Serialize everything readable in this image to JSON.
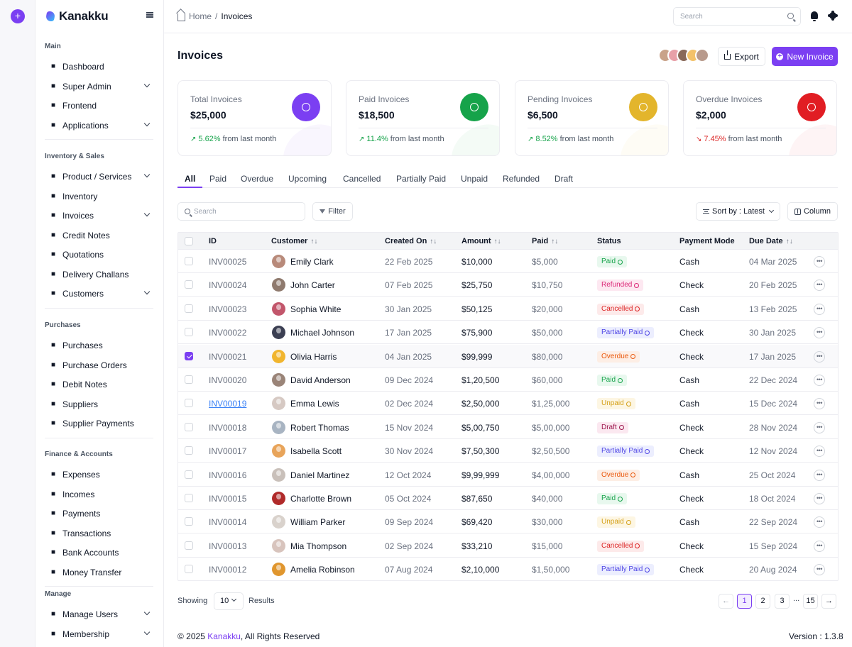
{
  "app": {
    "name": "Kanakku"
  },
  "sidebar": {
    "sections": [
      {
        "title": "Main",
        "items": [
          {
            "label": "Dashboard",
            "icon": "dashboard-icon",
            "expandable": false
          },
          {
            "label": "Super Admin",
            "icon": "super-admin-icon",
            "expandable": true
          },
          {
            "label": "Frontend",
            "icon": "frontend-icon",
            "expandable": false
          },
          {
            "label": "Applications",
            "icon": "applications-icon",
            "expandable": true
          }
        ]
      },
      {
        "title": "Inventory & Sales",
        "items": [
          {
            "label": "Product / Services",
            "icon": "box-icon",
            "expandable": true
          },
          {
            "label": "Inventory",
            "icon": "inventory-icon",
            "expandable": false
          },
          {
            "label": "Invoices",
            "icon": "invoice-icon",
            "expandable": true
          },
          {
            "label": "Credit Notes",
            "icon": "credit-note-icon",
            "expandable": false
          },
          {
            "label": "Quotations",
            "icon": "quotation-icon",
            "expandable": false
          },
          {
            "label": "Delivery Challans",
            "icon": "delivery-icon",
            "expandable": false
          },
          {
            "label": "Customers",
            "icon": "customers-icon",
            "expandable": true
          }
        ]
      },
      {
        "title": "Purchases",
        "items": [
          {
            "label": "Purchases",
            "icon": "purchases-icon",
            "expandable": false
          },
          {
            "label": "Purchase Orders",
            "icon": "purchase-order-icon",
            "expandable": false
          },
          {
            "label": "Debit Notes",
            "icon": "debit-note-icon",
            "expandable": false
          },
          {
            "label": "Suppliers",
            "icon": "supplier-icon",
            "expandable": false
          },
          {
            "label": "Supplier Payments",
            "icon": "supplier-payment-icon",
            "expandable": false
          }
        ]
      },
      {
        "title": "Finance & Accounts",
        "items": [
          {
            "label": "Expenses",
            "icon": "expenses-icon",
            "expandable": false
          },
          {
            "label": "Incomes",
            "icon": "incomes-icon",
            "expandable": false
          },
          {
            "label": "Payments",
            "icon": "payments-icon",
            "expandable": false
          },
          {
            "label": "Transactions",
            "icon": "transactions-icon",
            "expandable": false
          },
          {
            "label": "Bank Accounts",
            "icon": "bank-icon",
            "expandable": false
          },
          {
            "label": "Money Transfer",
            "icon": "transfer-icon",
            "expandable": false
          }
        ]
      },
      {
        "title": "Manage",
        "items": [
          {
            "label": "Manage Users",
            "icon": "users-icon",
            "expandable": true
          },
          {
            "label": "Membership",
            "icon": "membership-icon",
            "expandable": true
          }
        ]
      }
    ]
  },
  "topbar": {
    "breadcrumb_home": "Home",
    "breadcrumb_sep": "/",
    "breadcrumb_current": "Invoices",
    "search_placeholder": "Search"
  },
  "page": {
    "title": "Invoices",
    "export_label": "Export",
    "new_label": "New Invoice",
    "avatar_colors": [
      "#c9a38a",
      "#e8a0a8",
      "#8a6a5a",
      "#f3c26b",
      "#b89a8c"
    ]
  },
  "stats": [
    {
      "label": "Total Invoices",
      "value": "$25,000",
      "change": "5.62%",
      "suffix": "from last month",
      "direction": "up",
      "color": "#7b3ff2"
    },
    {
      "label": "Paid Invoices",
      "value": "$18,500",
      "change": "11.4%",
      "suffix": "from last month",
      "direction": "up",
      "color": "#16a34a"
    },
    {
      "label": "Pending Invoices",
      "value": "$6,500",
      "change": "8.52%",
      "suffix": "from last month",
      "direction": "up",
      "color": "#e3b52c"
    },
    {
      "label": "Overdue Invoices",
      "value": "$2,000",
      "change": "7.45%",
      "suffix": "from last month",
      "direction": "down",
      "color": "#e11d23"
    }
  ],
  "tabs": [
    "All",
    "Paid",
    "Overdue",
    "Upcoming",
    "Cancelled",
    "Partially Paid",
    "Unpaid",
    "Refunded",
    "Draft"
  ],
  "toolbar": {
    "search_placeholder": "Search",
    "filter_label": "Filter",
    "sort_label": "Sort by : Latest",
    "column_label": "Column"
  },
  "table": {
    "headers": {
      "id": "ID",
      "customer": "Customer",
      "created": "Created On",
      "amount": "Amount",
      "paid": "Paid",
      "status": "Status",
      "mode": "Payment Mode",
      "due": "Due Date"
    },
    "rows": [
      {
        "id": "INV00025",
        "customer": "Emily Clark",
        "created": "22 Feb 2025",
        "amount": "$10,000",
        "paid": "$5,000",
        "status": "Paid",
        "mode": "Cash",
        "due": "04 Mar 2025",
        "avatar": "#b88a7a",
        "checked": false
      },
      {
        "id": "INV00024",
        "customer": "John Carter",
        "created": "07 Feb 2025",
        "amount": "$25,750",
        "paid": "$10,750",
        "status": "Refunded",
        "mode": "Check",
        "due": "20 Feb 2025",
        "avatar": "#8f7a6e",
        "checked": false
      },
      {
        "id": "INV00023",
        "customer": "Sophia White",
        "created": "30 Jan 2025",
        "amount": "$50,125",
        "paid": "$20,000",
        "status": "Cancelled",
        "mode": "Cash",
        "due": "13 Feb 2025",
        "avatar": "#c2566b",
        "checked": false
      },
      {
        "id": "INV00022",
        "customer": "Michael Johnson",
        "created": "17 Jan 2025",
        "amount": "$75,900",
        "paid": "$50,000",
        "status": "Partially Paid",
        "mode": "Check",
        "due": "30 Jan 2025",
        "avatar": "#3b3f52",
        "checked": false
      },
      {
        "id": "INV00021",
        "customer": "Olivia Harris",
        "created": "04 Jan 2025",
        "amount": "$99,999",
        "paid": "$80,000",
        "status": "Overdue",
        "mode": "Check",
        "due": "17 Jan 2025",
        "avatar": "#f1b52e",
        "checked": true
      },
      {
        "id": "INV00020",
        "customer": "David Anderson",
        "created": "09 Dec 2024",
        "amount": "$1,20,500",
        "paid": "$60,000",
        "status": "Paid",
        "mode": "Cash",
        "due": "22 Dec 2024",
        "avatar": "#9a8478",
        "checked": false
      },
      {
        "id": "INV00019",
        "customer": "Emma Lewis",
        "created": "02 Dec 2024",
        "amount": "$2,50,000",
        "paid": "$1,25,000",
        "status": "Unpaid",
        "mode": "Cash",
        "due": "15 Dec 2024",
        "avatar": "#d6c9c3",
        "checked": false,
        "link": true
      },
      {
        "id": "INV00018",
        "customer": "Robert Thomas",
        "created": "15 Nov 2024",
        "amount": "$5,00,750",
        "paid": "$5,00,000",
        "status": "Draft",
        "mode": "Check",
        "due": "28 Nov 2024",
        "avatar": "#a8b4c2",
        "checked": false
      },
      {
        "id": "INV00017",
        "customer": "Isabella Scott",
        "created": "30 Nov 2024",
        "amount": "$7,50,300",
        "paid": "$2,50,500",
        "status": "Partially Paid",
        "mode": "Check",
        "due": "12 Nov 2024",
        "avatar": "#e8a45a",
        "checked": false
      },
      {
        "id": "INV00016",
        "customer": "Daniel Martinez",
        "created": "12 Oct 2024",
        "amount": "$9,99,999",
        "paid": "$4,00,000",
        "status": "Overdue",
        "mode": "Cash",
        "due": "25 Oct 2024",
        "avatar": "#c9c0ba",
        "checked": false
      },
      {
        "id": "INV00015",
        "customer": "Charlotte Brown",
        "created": "05 Oct 2024",
        "amount": "$87,650",
        "paid": "$40,000",
        "status": "Paid",
        "mode": "Check",
        "due": "18 Oct 2024",
        "avatar": "#b02a2a",
        "checked": false
      },
      {
        "id": "INV00014",
        "customer": "William Parker",
        "created": "09 Sep 2024",
        "amount": "$69,420",
        "paid": "$30,000",
        "status": "Unpaid",
        "mode": "Cash",
        "due": "22 Sep 2024",
        "avatar": "#d9d2cc",
        "checked": false
      },
      {
        "id": "INV00013",
        "customer": "Mia Thompson",
        "created": "02 Sep 2024",
        "amount": "$33,210",
        "paid": "$15,000",
        "status": "Cancelled",
        "mode": "Check",
        "due": "15 Sep 2024",
        "avatar": "#d8c4bd",
        "checked": false
      },
      {
        "id": "INV00012",
        "customer": "Amelia Robinson",
        "created": "07 Aug 2024",
        "amount": "$2,10,000",
        "paid": "$1,50,000",
        "status": "Partially Paid",
        "mode": "Check",
        "due": "20 Aug 2024",
        "avatar": "#e0962e",
        "checked": false
      }
    ]
  },
  "status_styles": {
    "Paid": {
      "fg": "#16a34a",
      "bg": "#e8f8ee"
    },
    "Refunded": {
      "fg": "#db2777",
      "bg": "#fde8f1"
    },
    "Cancelled": {
      "fg": "#dc2626",
      "bg": "#fdeaea"
    },
    "Partially Paid": {
      "fg": "#4f46e5",
      "bg": "#eceefe"
    },
    "Overdue": {
      "fg": "#ea580c",
      "bg": "#fdeee5"
    },
    "Unpaid": {
      "fg": "#d4a017",
      "bg": "#fdf6e3"
    },
    "Draft": {
      "fg": "#9d174d",
      "bg": "#fbe8f0"
    }
  },
  "pagination": {
    "showing_label": "Showing",
    "per_page": "10",
    "results_label": "Results",
    "prev": "←",
    "pages": [
      "1",
      "2",
      "3"
    ],
    "ellipsis": "...",
    "last": "15",
    "next": "→"
  },
  "footer": {
    "copyright_prefix": "© 2025 ",
    "copyright_brand": "Kanakku",
    "copyright_suffix": ", All Rights Reserved",
    "version": "Version : 1.3.8"
  }
}
